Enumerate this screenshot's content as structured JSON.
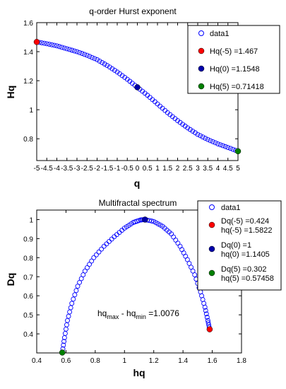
{
  "chart_data": [
    {
      "type": "scatter",
      "title": "q-order Hurst exponent",
      "xlabel": "q",
      "ylabel": "Hq",
      "xlim": [
        -5,
        5
      ],
      "ylim": [
        0.65,
        1.6
      ],
      "xticks": [
        "-5",
        "-4.5",
        "-4",
        "-3.5",
        "-3",
        "-2.5",
        "-2",
        "-1.5",
        "-1",
        "-0.5",
        "0",
        "0.5",
        "1",
        "1.5",
        "2",
        "2.5",
        "3",
        "3.5",
        "4",
        "4.5",
        "5"
      ],
      "xtick_values": [
        -5,
        -4.5,
        -4,
        -3.5,
        -3,
        -2.5,
        -2,
        -1.5,
        -1,
        -0.5,
        0,
        0.5,
        1,
        1.5,
        2,
        2.5,
        3,
        3.5,
        4,
        4.5,
        5
      ],
      "xtick_labels": [
        "-5",
        "",
        "-4",
        "",
        "-3",
        "",
        "-2",
        "",
        "-1",
        "",
        "0",
        "",
        "1",
        "",
        "2",
        "",
        "3",
        "",
        "4",
        "",
        "5"
      ],
      "yticks": [
        "0.8",
        "1",
        "1.2",
        "1.4",
        "1.6"
      ],
      "ytick_values": [
        0.8,
        1.0,
        1.2,
        1.4,
        1.6
      ],
      "series": [
        {
          "name": "data1",
          "marker": "open-circle",
          "color": "#0000ff",
          "x": [
            -5,
            -4.5,
            -4,
            -3.5,
            -3,
            -2.5,
            -2,
            -1.5,
            -1,
            -0.5,
            0,
            0.5,
            1,
            1.5,
            2,
            2.5,
            3,
            3.5,
            4,
            4.5,
            5
          ],
          "y": [
            1.467,
            1.455,
            1.44,
            1.42,
            1.4,
            1.375,
            1.345,
            1.305,
            1.26,
            1.21,
            1.155,
            1.1,
            1.04,
            0.98,
            0.925,
            0.875,
            0.83,
            0.795,
            0.765,
            0.74,
            0.714
          ]
        }
      ],
      "highlights": [
        {
          "label": "Hq(-5) =1.467",
          "x": -5,
          "y": 1.467,
          "color": "#ff0000"
        },
        {
          "label": "Hq(0) =1.1548",
          "x": 0,
          "y": 1.1548,
          "color": "#0000aa"
        },
        {
          "label": "Hq(5) =0.71418",
          "x": 5,
          "y": 0.71418,
          "color": "#008000"
        }
      ],
      "legend": "top-right"
    },
    {
      "type": "scatter",
      "title": "Multifractal spectrum",
      "xlabel": "hq",
      "ylabel": "Dq",
      "xlim": [
        0.4,
        1.8
      ],
      "ylim": [
        0.3,
        1.05
      ],
      "xticks": [
        "0.4",
        "0.6",
        "0.8",
        "1",
        "1.2",
        "1.4",
        "1.6",
        "1.8"
      ],
      "xtick_values": [
        0.4,
        0.6,
        0.8,
        1.0,
        1.2,
        1.4,
        1.6,
        1.8
      ],
      "yticks": [
        "0.4",
        "0.5",
        "0.6",
        "0.7",
        "0.8",
        "0.9",
        "1"
      ],
      "ytick_values": [
        0.4,
        0.5,
        0.6,
        0.7,
        0.8,
        0.9,
        1.0
      ],
      "series": [
        {
          "name": "data1",
          "marker": "open-circle",
          "color": "#0000ff",
          "x": [
            0.575,
            0.59,
            0.61,
            0.64,
            0.68,
            0.73,
            0.79,
            0.86,
            0.93,
            1.0,
            1.06,
            1.11,
            1.1405,
            1.2,
            1.26,
            1.32,
            1.38,
            1.43,
            1.48,
            1.52,
            1.55,
            1.57,
            1.582
          ],
          "y": [
            0.302,
            0.38,
            0.47,
            0.56,
            0.65,
            0.73,
            0.8,
            0.86,
            0.91,
            0.955,
            0.985,
            0.998,
            1.0,
            0.99,
            0.965,
            0.925,
            0.86,
            0.79,
            0.71,
            0.62,
            0.54,
            0.47,
            0.424
          ]
        }
      ],
      "highlights": [
        {
          "label_line1": "Dq(-5) =0.424",
          "label_line2": "hq(-5) =1.5822",
          "x": 1.5822,
          "y": 0.424,
          "color": "#ff0000"
        },
        {
          "label_line1": "Dq(0) =1",
          "label_line2": "hq(0) =1.1405",
          "x": 1.1405,
          "y": 1.0,
          "color": "#0000aa"
        },
        {
          "label_line1": "Dq(5) =0.302",
          "label_line2": "hq(5) =0.57458",
          "x": 0.57458,
          "y": 0.302,
          "color": "#008000"
        }
      ],
      "annotation": {
        "prefix": "hq",
        "sub1": "max",
        "mid": " - hq",
        "sub2": "min",
        "suffix": " =1.0076"
      },
      "legend": "top-right"
    }
  ]
}
